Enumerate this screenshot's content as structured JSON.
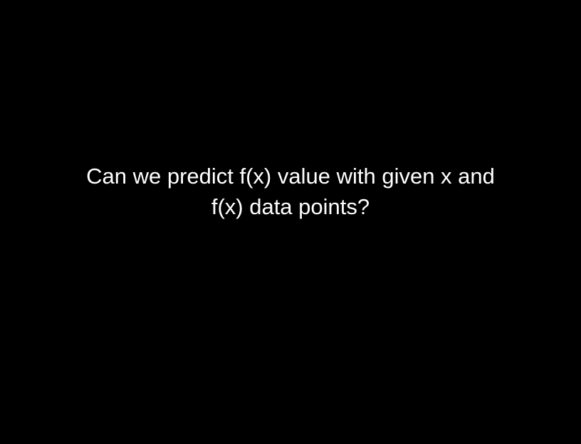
{
  "slide": {
    "background_color": "#000000",
    "text_color": "#ffffff",
    "text_lines": [
      "Can we predict f(x) value with given x and",
      "f(x) data points?"
    ]
  }
}
